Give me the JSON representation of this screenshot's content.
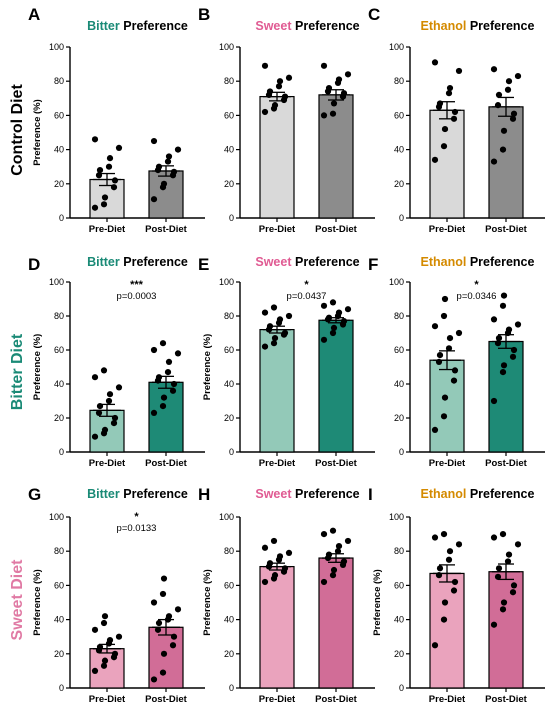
{
  "figure": {
    "rows": [
      {
        "label": "Control Diet",
        "color": "#000000"
      },
      {
        "label": "Bitter Diet",
        "color": "#1a8a76"
      },
      {
        "label": "Sweet Diet",
        "color": "#e07aa4"
      }
    ],
    "title_suffix": "Preference",
    "taste_colors": {
      "Bitter": "#1a8a76",
      "Sweet": "#e05b93",
      "Ethanol": "#d48a00"
    }
  },
  "chart_data": [
    {
      "letter": "A",
      "taste": "Bitter",
      "type": "bar",
      "ylabel": "Preference (%)",
      "ylim": [
        0,
        100
      ],
      "yticks": [
        0,
        20,
        40,
        60,
        80,
        100
      ],
      "categories": [
        "Pre-Diet",
        "Post-Diet"
      ],
      "values": [
        22.5,
        27.5
      ],
      "sem": [
        3.5,
        3.0
      ],
      "bar_colors": [
        "#d9d9d9",
        "#8c8c8c"
      ],
      "points": [
        [
          6,
          8,
          12,
          18,
          22,
          25,
          28,
          30,
          35,
          41,
          46
        ],
        [
          11,
          18,
          20,
          25,
          27,
          28,
          30,
          33,
          36,
          40,
          45
        ]
      ],
      "sig": null,
      "pvalue": null
    },
    {
      "letter": "B",
      "taste": "Sweet",
      "type": "bar",
      "ylabel": "",
      "ylim": [
        0,
        100
      ],
      "yticks": [
        0,
        20,
        40,
        60,
        80,
        100
      ],
      "categories": [
        "Pre-Diet",
        "Post-Diet"
      ],
      "values": [
        71,
        72
      ],
      "sem": [
        2.5,
        3.0
      ],
      "bar_colors": [
        "#d9d9d9",
        "#8c8c8c"
      ],
      "points": [
        [
          62,
          64,
          66,
          69,
          71,
          72,
          74,
          77,
          80,
          82,
          89
        ],
        [
          60,
          61,
          67,
          71,
          73,
          74,
          76,
          79,
          81,
          84,
          89
        ]
      ],
      "sig": null,
      "pvalue": null
    },
    {
      "letter": "C",
      "taste": "Ethanol",
      "type": "bar",
      "ylabel": "",
      "ylim": [
        0,
        100
      ],
      "yticks": [
        0,
        20,
        40,
        60,
        80,
        100
      ],
      "categories": [
        "Pre-Diet",
        "Post-Diet"
      ],
      "values": [
        63,
        65
      ],
      "sem": [
        5.0,
        5.5
      ],
      "bar_colors": [
        "#d9d9d9",
        "#8c8c8c"
      ],
      "points": [
        [
          34,
          42,
          52,
          58,
          62,
          65,
          67,
          73,
          76,
          86,
          91
        ],
        [
          33,
          40,
          51,
          58,
          61,
          66,
          72,
          75,
          80,
          83,
          87
        ]
      ],
      "sig": null,
      "pvalue": null
    },
    {
      "letter": "D",
      "taste": "Bitter",
      "type": "bar",
      "ylabel": "Preference (%)",
      "ylim": [
        0,
        100
      ],
      "yticks": [
        0,
        20,
        40,
        60,
        80,
        100
      ],
      "categories": [
        "Pre-Diet",
        "Post-Diet"
      ],
      "values": [
        24.5,
        41
      ],
      "sem": [
        3.5,
        3.5
      ],
      "bar_colors": [
        "#93c9b8",
        "#1e8a76"
      ],
      "points": [
        [
          9,
          11,
          13,
          17,
          20,
          23,
          27,
          30,
          34,
          38,
          44,
          48
        ],
        [
          23,
          27,
          32,
          36,
          40,
          42,
          44,
          47,
          53,
          58,
          60,
          64
        ]
      ],
      "sig": "***",
      "pvalue": "p=0.0003"
    },
    {
      "letter": "E",
      "taste": "Sweet",
      "type": "bar",
      "ylabel": "Preference (%)",
      "ylim": [
        0,
        100
      ],
      "yticks": [
        0,
        20,
        40,
        60,
        80,
        100
      ],
      "categories": [
        "Pre-Diet",
        "Post-Diet"
      ],
      "values": [
        72,
        77.5
      ],
      "sem": [
        2.0,
        1.5
      ],
      "bar_colors": [
        "#93c9b8",
        "#1e8a76"
      ],
      "points": [
        [
          62,
          64,
          67,
          69,
          70,
          72,
          74,
          76,
          78,
          80,
          82,
          85
        ],
        [
          66,
          70,
          73,
          75,
          77,
          78,
          79,
          80,
          82,
          84,
          86,
          88
        ]
      ],
      "sig": "*",
      "pvalue": "p=0.0437"
    },
    {
      "letter": "F",
      "taste": "Ethanol",
      "type": "bar",
      "ylabel": "",
      "ylim": [
        0,
        100
      ],
      "yticks": [
        0,
        20,
        40,
        60,
        80,
        100
      ],
      "categories": [
        "Pre-Diet",
        "Post-Diet"
      ],
      "values": [
        54,
        65
      ],
      "sem": [
        5.5,
        4.0
      ],
      "bar_colors": [
        "#93c9b8",
        "#1e8a76"
      ],
      "points": [
        [
          13,
          21,
          32,
          42,
          48,
          53,
          57,
          61,
          67,
          70,
          74,
          80,
          90
        ],
        [
          30,
          47,
          51,
          56,
          60,
          64,
          67,
          70,
          72,
          75,
          78,
          86,
          92
        ]
      ],
      "sig": "*",
      "pvalue": "p=0.0346"
    },
    {
      "letter": "G",
      "taste": "Bitter",
      "type": "bar",
      "ylabel": "Preference (%)",
      "ylim": [
        0,
        100
      ],
      "yticks": [
        0,
        20,
        40,
        60,
        80,
        100
      ],
      "categories": [
        "Pre-Diet",
        "Post-Diet"
      ],
      "values": [
        23,
        35.5
      ],
      "sem": [
        2.5,
        4.5
      ],
      "bar_colors": [
        "#eaa3bd",
        "#d16d97"
      ],
      "points": [
        [
          10,
          13,
          16,
          18,
          20,
          22,
          24,
          26,
          28,
          30,
          34,
          38,
          42
        ],
        [
          5,
          9,
          20,
          25,
          30,
          34,
          38,
          40,
          42,
          46,
          50,
          55,
          64
        ]
      ],
      "sig": "*",
      "pvalue": "p=0.0133"
    },
    {
      "letter": "H",
      "taste": "Sweet",
      "type": "bar",
      "ylabel": "Preference (%)",
      "ylim": [
        0,
        100
      ],
      "yticks": [
        0,
        20,
        40,
        60,
        80,
        100
      ],
      "categories": [
        "Pre-Diet",
        "Post-Diet"
      ],
      "values": [
        71,
        76
      ],
      "sem": [
        2.0,
        2.5
      ],
      "bar_colors": [
        "#eaa3bd",
        "#d16d97"
      ],
      "points": [
        [
          62,
          64,
          66,
          68,
          70,
          71,
          73,
          75,
          77,
          79,
          82,
          86
        ],
        [
          62,
          66,
          69,
          72,
          74,
          76,
          78,
          80,
          83,
          86,
          90,
          92
        ]
      ],
      "sig": null,
      "pvalue": null
    },
    {
      "letter": "I",
      "taste": "Ethanol",
      "type": "bar",
      "ylabel": "Preference (%)",
      "ylim": [
        0,
        100
      ],
      "yticks": [
        0,
        20,
        40,
        60,
        80,
        100
      ],
      "categories": [
        "Pre-Diet",
        "Post-Diet"
      ],
      "values": [
        67,
        68
      ],
      "sem": [
        5.0,
        4.5
      ],
      "bar_colors": [
        "#eaa3bd",
        "#d16d97"
      ],
      "points": [
        [
          25,
          40,
          50,
          57,
          62,
          66,
          70,
          75,
          80,
          84,
          88,
          90
        ],
        [
          37,
          46,
          50,
          56,
          60,
          65,
          70,
          74,
          78,
          84,
          88,
          90
        ]
      ],
      "sig": null,
      "pvalue": null
    }
  ]
}
